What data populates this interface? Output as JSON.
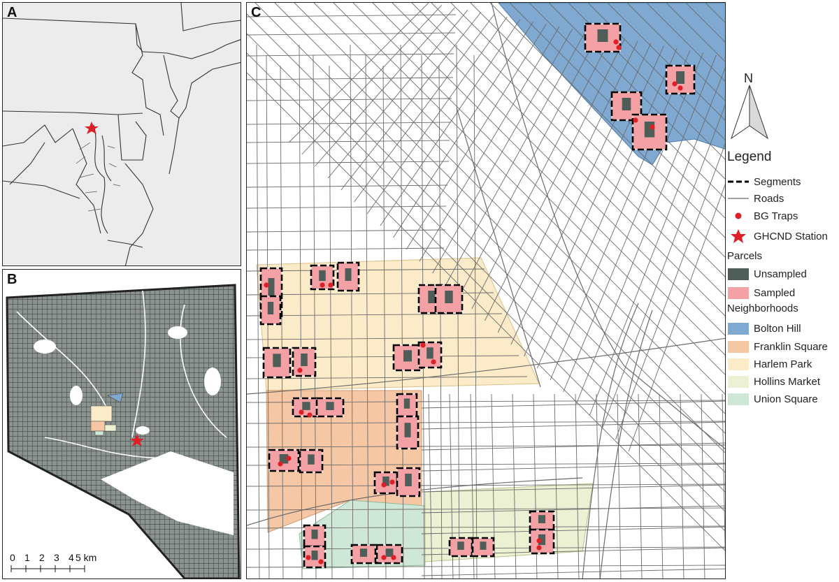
{
  "panels": {
    "a": {
      "label": "A"
    },
    "b": {
      "label": "B"
    },
    "c": {
      "label": "C"
    }
  },
  "scale": {
    "ticks": [
      "0",
      "1",
      "2",
      "3",
      "4",
      "5 km"
    ]
  },
  "north": {
    "label": "N"
  },
  "legend": {
    "title": "Legend",
    "items": [
      {
        "label": "Segments",
        "symbol": "dashed-line-icon",
        "color": "#000000"
      },
      {
        "label": "Roads",
        "symbol": "thin-line-icon",
        "color": "#6b6b6b"
      },
      {
        "label": "BG Traps",
        "symbol": "red-dot-icon",
        "color": "#e01e25"
      },
      {
        "label": "GHCND Station",
        "symbol": "red-star-icon",
        "color": "#e01e25"
      }
    ],
    "parcels_title": "Parcels",
    "parcels": [
      {
        "label": "Unsampled",
        "color": "#4e5d58"
      },
      {
        "label": "Sampled",
        "color": "#f3a1a4"
      }
    ],
    "neighborhoods_title": "Neighborhoods",
    "neighborhoods": [
      {
        "label": "Bolton Hill",
        "color": "#7fa9d1"
      },
      {
        "label": "Franklin Square",
        "color": "#f6c7a4"
      },
      {
        "label": "Harlem Park",
        "color": "#fcebc9"
      },
      {
        "label": "Hollins Market",
        "color": "#ecf1d4"
      },
      {
        "label": "Union Square",
        "color": "#cfe7d6"
      }
    ]
  }
}
